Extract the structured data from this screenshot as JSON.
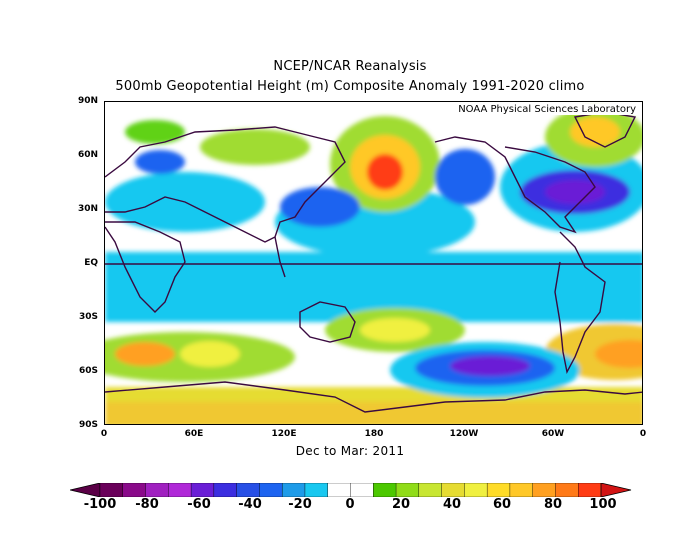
{
  "figure": {
    "title_line1": "NCEP/NCAR Reanalysis",
    "title_line2": "500mb Geopotential Height (m) Composite Anomaly 1991-2020 climo",
    "credit": "NOAA Physical Sciences Laboratory",
    "period": "Dec to Mar: 2011"
  },
  "map": {
    "lat_labels": [
      "90N",
      "60N",
      "30N",
      "EQ",
      "30S",
      "60S",
      "90S"
    ],
    "lon_labels": [
      "0",
      "60E",
      "120E",
      "180",
      "120W",
      "60W",
      "0"
    ],
    "colors": [
      "#6a005a",
      "#8a0a8a",
      "#a020c0",
      "#6a1ed6",
      "#3c2ee0",
      "#1e64f0",
      "#1e9be8",
      "#19c8f0",
      "#ffffff",
      "#ffffff",
      "#60d218",
      "#a0dc30",
      "#e6dc32",
      "#f0f040",
      "#ffc828",
      "#ffa020",
      "#ff7a18",
      "#ff3c14"
    ]
  },
  "colorbar": {
    "labels": [
      "-100",
      "-80",
      "-60",
      "-40",
      "-20",
      "0",
      "20",
      "40",
      "60",
      "80",
      "100"
    ],
    "colors": [
      "#6a005a",
      "#8a0a8a",
      "#a020c0",
      "#b028d8",
      "#6a1ed6",
      "#3c2ee0",
      "#2850e6",
      "#1e64f0",
      "#1e9be8",
      "#19c8f0",
      "#ffffff",
      "#ffffff",
      "#4cc800",
      "#90dc18",
      "#c8e632",
      "#e6dc32",
      "#f0f040",
      "#ffdc28",
      "#ffc828",
      "#ffa020",
      "#ff7a18",
      "#ff3c14"
    ],
    "min_color": "#5a0046",
    "max_color": "#d21414"
  }
}
